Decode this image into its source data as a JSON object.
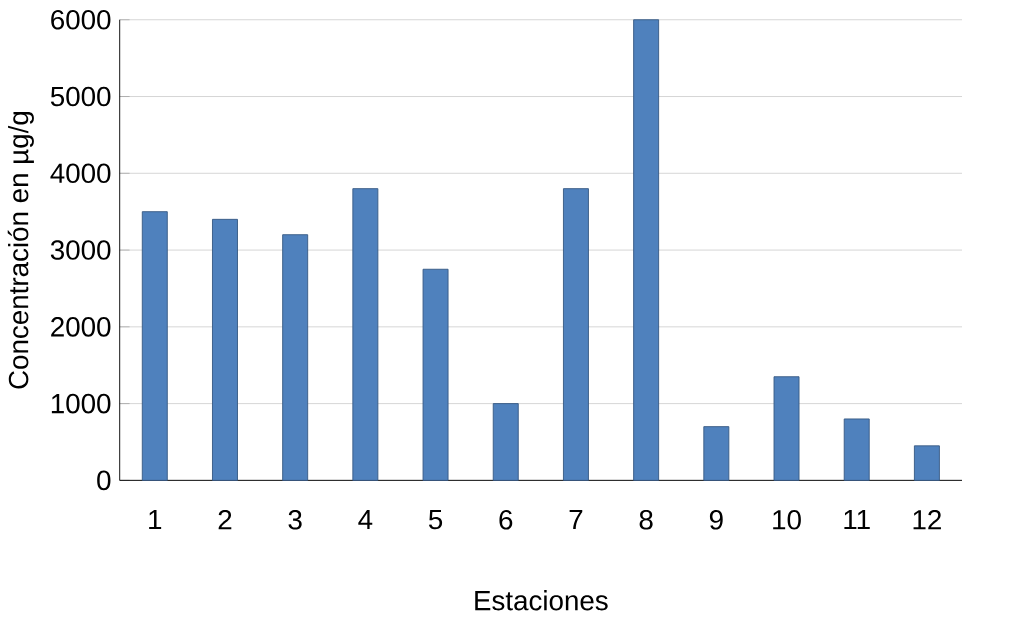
{
  "chart_data": {
    "type": "bar",
    "xlabel": "Estaciones",
    "ylabel": "Concentración en µg/g",
    "categories": [
      "1",
      "2",
      "3",
      "4",
      "5",
      "6",
      "7",
      "8",
      "9",
      "10",
      "11",
      "12"
    ],
    "values": [
      3500,
      3400,
      3200,
      3800,
      2750,
      1000,
      3800,
      6000,
      700,
      1350,
      800,
      450
    ],
    "color": "#4f81bd",
    "ylim": [
      0,
      6000
    ],
    "yticks": [
      0,
      1000,
      2000,
      3000,
      4000,
      5000,
      6000
    ],
    "grid": "y"
  }
}
